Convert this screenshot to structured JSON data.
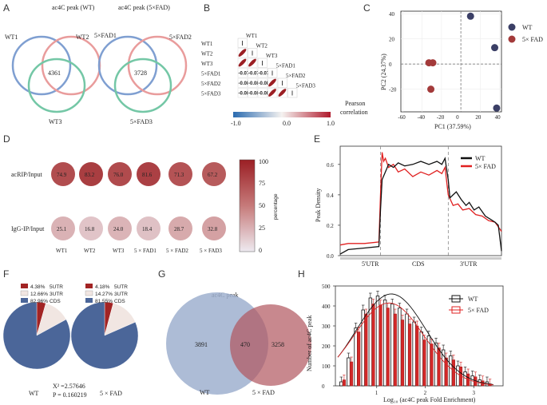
{
  "panels": {
    "a": "A",
    "b": "B",
    "c": "C",
    "d": "D",
    "e": "E",
    "f": "F",
    "g": "G",
    "h": "H"
  },
  "chart_data": [
    {
      "type": "venn",
      "panel": "A",
      "charts": [
        {
          "title": "ac4C peak (WT)",
          "sets": [
            "WT1",
            "WT2",
            "WT3"
          ],
          "center_value": 4361
        },
        {
          "title": "ac4C peak (5×FAD)",
          "sets": [
            "5×FAD1",
            "5×FAD2",
            "5×FAD3"
          ],
          "center_value": 3728
        }
      ]
    },
    {
      "type": "heatmap",
      "panel": "B",
      "labels": [
        "WT1",
        "WT2",
        "WT3",
        "5×FAD1",
        "5×FAD2",
        "5×FAD3"
      ],
      "matrix": [
        [
          1,
          1,
          1,
          -0.07,
          -0.08,
          -0.08
        ],
        [
          1,
          1,
          1,
          -0.07,
          -0.08,
          -0.08
        ],
        [
          1,
          1,
          1,
          -0.07,
          -0.08,
          -0.08
        ],
        [
          -0.07,
          -0.07,
          -0.07,
          1,
          1,
          1
        ],
        [
          -0.08,
          -0.08,
          -0.08,
          1,
          1,
          1
        ],
        [
          -0.08,
          -0.08,
          -0.08,
          1,
          1,
          1
        ]
      ],
      "lower_labels": [
        [
          "-0.07",
          "-0.07",
          "-0.07"
        ],
        [
          "-0.08",
          "-0.08",
          "-0.08"
        ],
        [
          "-0.08",
          "-0.08",
          "-0.08"
        ]
      ],
      "colorbar": {
        "ticks": [
          "-1.0",
          "0.0",
          "1.0"
        ],
        "label": "Pearson correlation",
        "min": -1,
        "max": 1
      }
    },
    {
      "type": "scatter",
      "panel": "C",
      "xlabel": "PC1 (37.59%)",
      "ylabel": "PC2 (24.37%)",
      "xlim": [
        -62,
        42
      ],
      "ylim": [
        -38,
        42
      ],
      "xticks": [
        -60,
        -40,
        -20,
        0,
        20,
        40
      ],
      "yticks": [
        -20,
        0,
        20,
        40
      ],
      "series": [
        {
          "name": "WT",
          "color": "#3b3f66",
          "points": [
            [
              10,
              38
            ],
            [
              35,
              13
            ],
            [
              37,
              -35
            ]
          ]
        },
        {
          "name": "5× FAD",
          "color": "#a33a3a",
          "points": [
            [
              -33,
              1
            ],
            [
              -29,
              1
            ],
            [
              -31,
              -20
            ]
          ]
        }
      ]
    },
    {
      "type": "bubble",
      "panel": "D",
      "rows": [
        "acRIP/Input",
        "IgG-IP/Input"
      ],
      "columns": [
        "WT1",
        "WT2",
        "WT3",
        "5 × FAD1",
        "5 × FAD2",
        "5 × FAD3"
      ],
      "values": [
        [
          "74.9",
          "83.2",
          "76.0",
          "81.6",
          "71.3",
          "67.2"
        ],
        [
          "25.1",
          "16.8",
          "24.0",
          "18.4",
          "28.7",
          "32.8"
        ]
      ],
      "colorbar": {
        "ticks": [
          "100",
          "75",
          "50",
          "25",
          "0"
        ],
        "label": "percentage"
      }
    },
    {
      "type": "line",
      "panel": "E",
      "ylabel": "Peak Density",
      "yticks": [
        "0.0",
        "0.2",
        "0.4",
        "0.6"
      ],
      "ylim": [
        0,
        0.72
      ],
      "regions": [
        "5'UTR",
        "CDS",
        "3'UTR"
      ],
      "series": [
        {
          "name": "WT",
          "color": "#111111",
          "x": [
            0,
            0.05,
            0.15,
            0.24,
            0.25,
            0.26,
            0.28,
            0.3,
            0.33,
            0.36,
            0.4,
            0.45,
            0.5,
            0.55,
            0.6,
            0.63,
            0.65,
            0.67,
            0.68,
            0.7,
            0.72,
            0.75,
            0.78,
            0.8,
            0.83,
            0.86,
            0.9,
            0.93,
            0.96,
            0.98,
            1
          ],
          "y": [
            0.01,
            0.04,
            0.05,
            0.06,
            0.3,
            0.5,
            0.55,
            0.6,
            0.58,
            0.61,
            0.59,
            0.6,
            0.62,
            0.6,
            0.62,
            0.6,
            0.64,
            0.5,
            0.38,
            0.4,
            0.42,
            0.37,
            0.33,
            0.35,
            0.3,
            0.32,
            0.26,
            0.24,
            0.22,
            0.2,
            0.03
          ]
        },
        {
          "name": "5× FAD",
          "color": "#e02020",
          "x": [
            0,
            0.05,
            0.15,
            0.24,
            0.25,
            0.26,
            0.27,
            0.28,
            0.3,
            0.33,
            0.36,
            0.4,
            0.45,
            0.5,
            0.55,
            0.6,
            0.63,
            0.65,
            0.67,
            0.7,
            0.73,
            0.76,
            0.8,
            0.84,
            0.88,
            0.92,
            0.96,
            1
          ],
          "y": [
            0.07,
            0.08,
            0.08,
            0.09,
            0.4,
            0.68,
            0.62,
            0.64,
            0.58,
            0.6,
            0.55,
            0.57,
            0.52,
            0.55,
            0.53,
            0.56,
            0.54,
            0.58,
            0.4,
            0.33,
            0.34,
            0.3,
            0.31,
            0.27,
            0.26,
            0.23,
            0.22,
            0.16
          ]
        }
      ]
    },
    {
      "type": "pie",
      "panel": "F",
      "legend": [
        {
          "pct": "4.38%",
          "label": "5UTR",
          "color": "#a22424"
        },
        {
          "pct": "12.66%",
          "label": "3UTR",
          "color": "#f1e6e2"
        },
        {
          "pct": "82.96%",
          "label": "CDS",
          "color": "#4b6699"
        }
      ],
      "legend2": [
        {
          "pct": "4.18%",
          "label": "5UTR",
          "color": "#a22424"
        },
        {
          "pct": "14.27%",
          "label": "3UTR",
          "color": "#f1e6e2"
        },
        {
          "pct": "81.55%",
          "label": "CDS",
          "color": "#4b6699"
        }
      ],
      "pies": [
        {
          "name": "WT",
          "values": [
            4.38,
            12.66,
            82.96
          ]
        },
        {
          "name": "5 × FAD",
          "values": [
            4.18,
            14.27,
            81.55
          ]
        }
      ],
      "stats": [
        "X² =2.57646",
        "P = 0.160219"
      ]
    },
    {
      "type": "venn",
      "panel": "G",
      "title": "ac4C peak",
      "sets": [
        "WT",
        "5 × FAD"
      ],
      "values": [
        "3891",
        "470",
        "3258"
      ]
    },
    {
      "type": "bar",
      "panel": "H",
      "xlabel": "Log₁₀ (ac4C peak Fold Enrichment)",
      "ylabel": "Number of ac4C peak",
      "ylim": [
        0,
        500
      ],
      "yticks": [
        "0",
        "100",
        "200",
        "300",
        "400",
        "500"
      ],
      "xticks": [
        "1",
        "2",
        "3"
      ],
      "categories": [
        0.3,
        0.45,
        0.6,
        0.75,
        0.9,
        1.05,
        1.2,
        1.35,
        1.5,
        1.65,
        1.8,
        1.95,
        2.1,
        2.25,
        2.4,
        2.55,
        2.7,
        2.85,
        3.0,
        3.15,
        3.3
      ],
      "series": [
        {
          "name": "WT",
          "values": [
            20,
            140,
            290,
            380,
            440,
            450,
            430,
            410,
            390,
            360,
            320,
            270,
            250,
            215,
            180,
            150,
            100,
            70,
            50,
            30,
            20
          ]
        },
        {
          "name": "5× FAD",
          "values": [
            30,
            120,
            270,
            360,
            410,
            405,
            390,
            360,
            330,
            310,
            300,
            230,
            210,
            190,
            140,
            130,
            95,
            60,
            45,
            25,
            10
          ]
        }
      ]
    }
  ]
}
